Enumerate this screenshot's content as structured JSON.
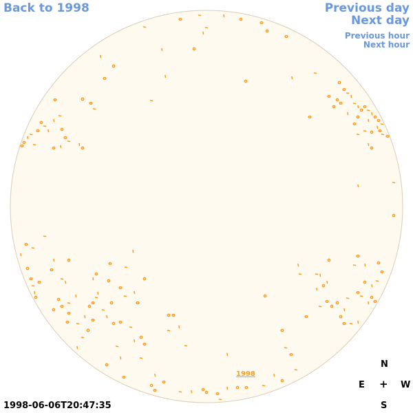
{
  "nav": {
    "back_label": "Back to 1998",
    "prev_day_label": "Previous day",
    "next_day_label": "Next day",
    "prev_hour_label": "Previous hour",
    "next_hour_label": "Next hour"
  },
  "compass": {
    "north": "N",
    "south": "S",
    "east": "E",
    "west": "W",
    "center": "+"
  },
  "timestamp": "1998-06-06T20:47:35",
  "year_label": "1998",
  "colors": {
    "disc_fill": "#fffaf0",
    "disc_edge": "#d9cdb8",
    "feature": "#ff9a1a",
    "link": "#6b97dc"
  }
}
